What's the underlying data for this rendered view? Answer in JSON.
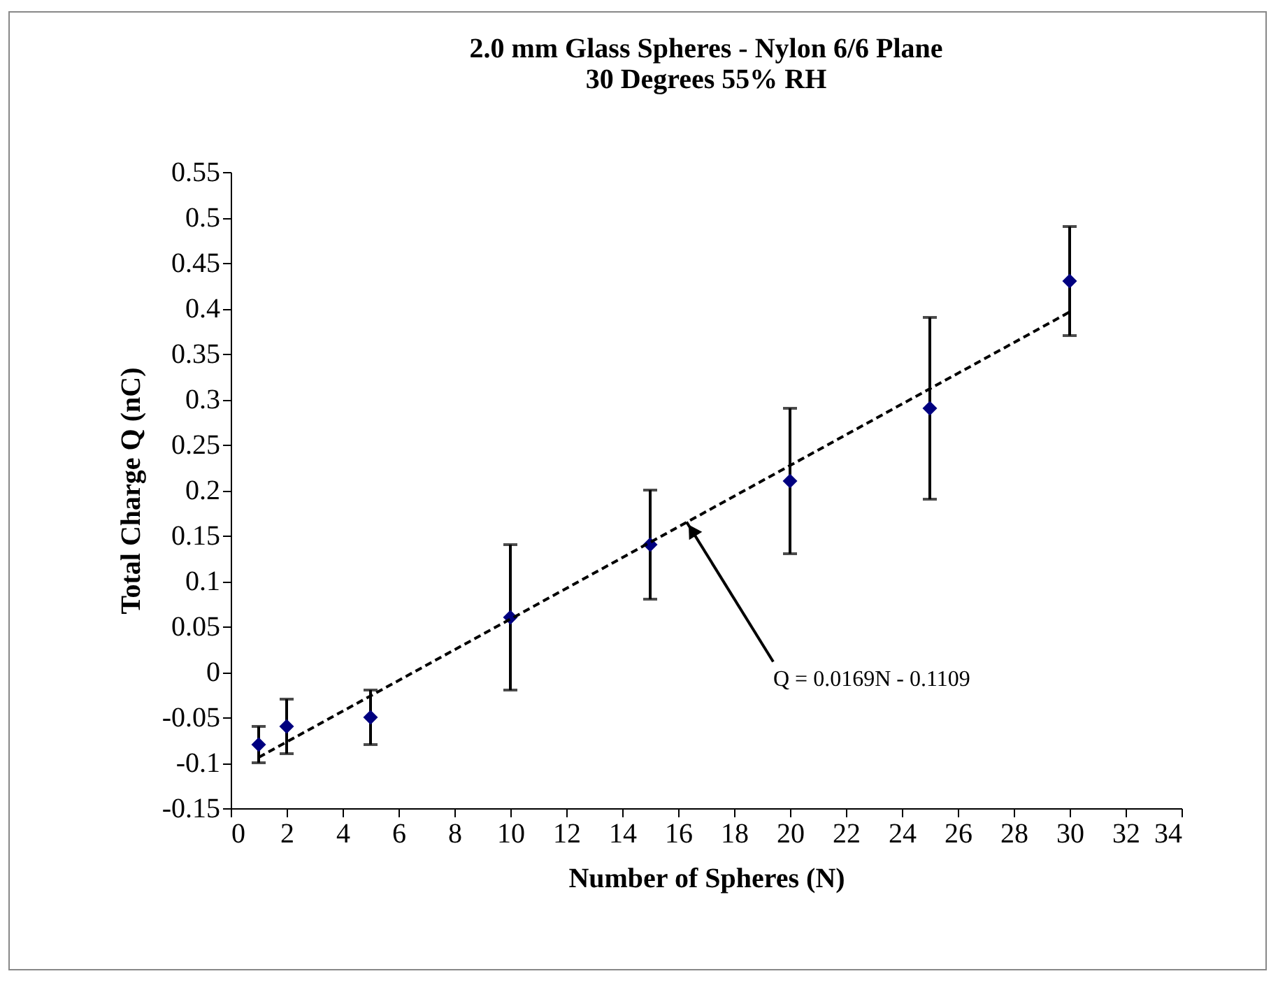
{
  "chart_data": {
    "type": "scatter",
    "title": [
      "2.0 mm Glass Spheres - Nylon 6/6 Plane",
      "30 Degrees 55% RH"
    ],
    "xlabel": "Number of Spheres (N)",
    "ylabel": "Total Charge Q (nC)",
    "x": [
      1,
      2,
      5,
      10,
      15,
      20,
      25,
      30
    ],
    "series": [
      {
        "color": "#000080",
        "marker": "diamond",
        "values": [
          -0.08,
          -0.06,
          -0.05,
          0.06,
          0.14,
          0.21,
          0.29,
          0.43
        ],
        "errors": [
          0.02,
          0.03,
          0.03,
          0.08,
          0.06,
          0.08,
          0.1,
          0.06
        ]
      },
      {
        "type": "line",
        "color": "#000000",
        "line_style": "dashed",
        "x": [
          1,
          30
        ],
        "values": [
          -0.094,
          0.396
        ]
      }
    ],
    "annotations": [
      {
        "text": "Q = 0.0169N - 0.1109",
        "x": 16.3,
        "y": 0.165
      }
    ],
    "xlim": [
      0,
      34
    ],
    "xticks": [
      0,
      2,
      4,
      6,
      8,
      10,
      12,
      14,
      16,
      18,
      20,
      22,
      24,
      26,
      28,
      30,
      32,
      34
    ],
    "ylim": [
      -0.15,
      0.55
    ],
    "yticks": [
      -0.15,
      -0.1,
      -0.05,
      0,
      0.05,
      0.1,
      0.15,
      0.2,
      0.25,
      0.3,
      0.35,
      0.4,
      0.45,
      0.5,
      0.55
    ],
    "grid": false
  }
}
